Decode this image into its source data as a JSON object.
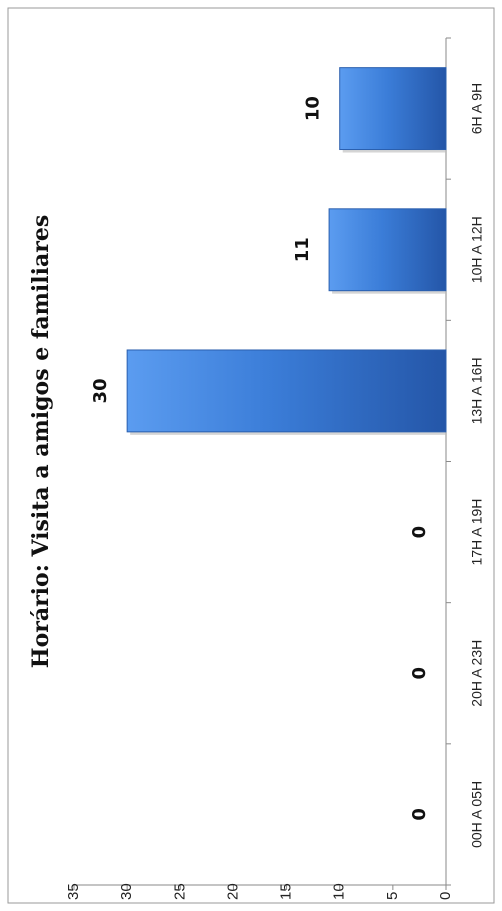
{
  "chart_data": {
    "type": "bar",
    "orientation": "vertical (rotated 90° clockwise on page)",
    "title": "Horário: Visita a amigos e familiares",
    "categories": [
      "6H A 9H",
      "10H A 12H",
      "13H A 16H",
      "17H A 19H",
      "20H A 23H",
      "00H A 05H"
    ],
    "values": [
      10,
      11,
      30,
      0,
      0,
      0
    ],
    "data_labels": [
      "10",
      "11",
      "30",
      "0",
      "0",
      "0"
    ],
    "ylim": [
      0,
      35
    ],
    "yticks": [
      0,
      5,
      10,
      15,
      20,
      25,
      30,
      35
    ],
    "grid": false,
    "legend": "none",
    "bar_color": "#3b7dd8",
    "bar_color_dark": "#2456a8"
  }
}
